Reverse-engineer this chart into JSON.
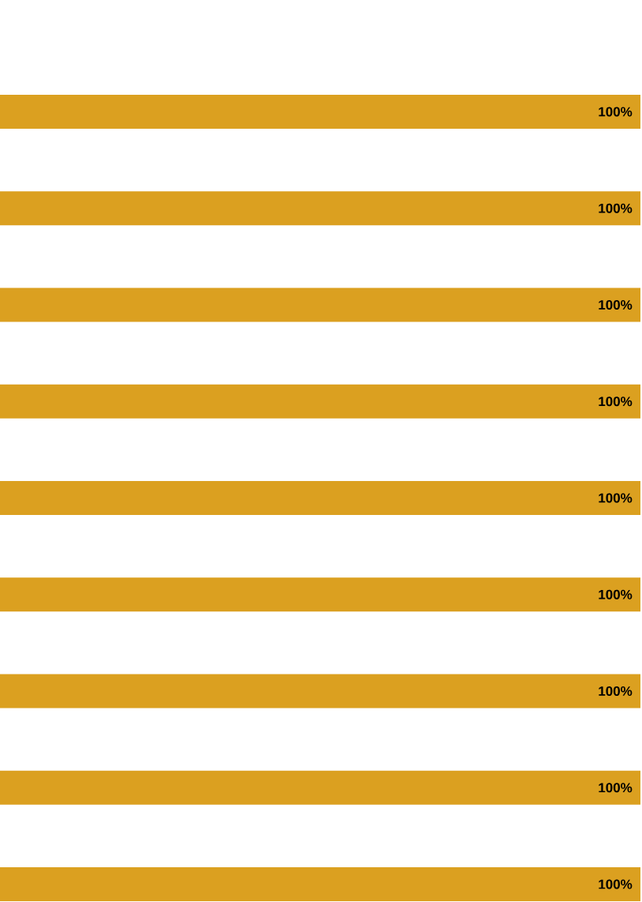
{
  "chart_data": {
    "type": "bar",
    "orientation": "horizontal",
    "categories": [
      null,
      null,
      null,
      null,
      null,
      null,
      null,
      null,
      null
    ],
    "values": [
      100,
      100,
      100,
      100,
      100,
      100,
      100,
      100,
      100
    ],
    "value_labels": [
      "100%",
      "100%",
      "100%",
      "100%",
      "100%",
      "100%",
      "100%",
      "100%",
      "100%"
    ],
    "color": "#dba020"
  }
}
